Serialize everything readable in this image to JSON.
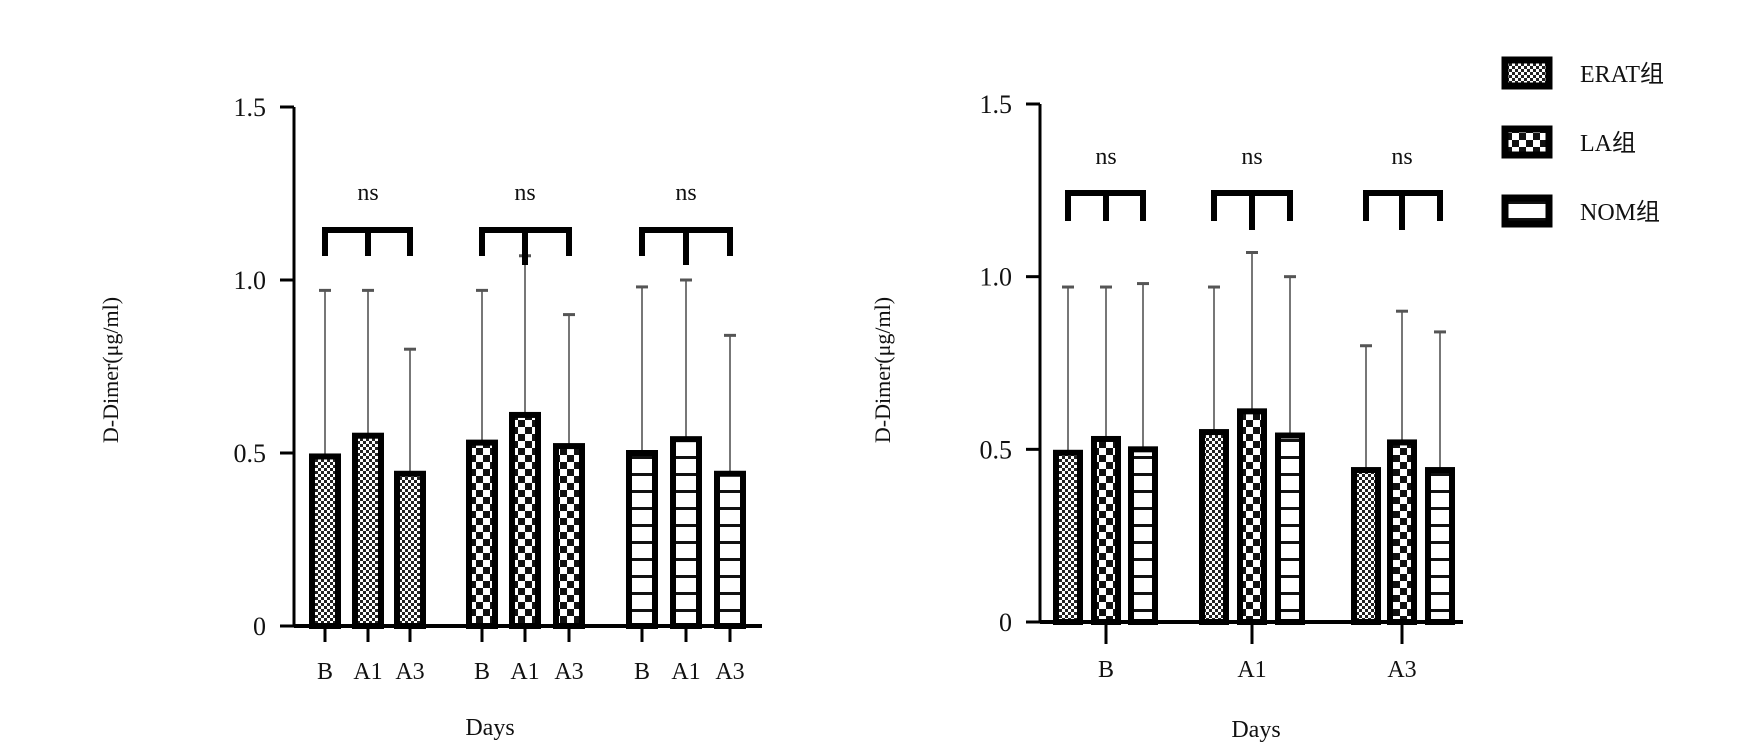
{
  "chart_data": [
    {
      "type": "bar",
      "grouping": "by-group",
      "xlabel": "Days",
      "ylabel": "D-Dimer(μg/ml)",
      "ylim": [
        0,
        1.5
      ],
      "yticks": [
        "0",
        "0.5",
        "1.0",
        "1.5"
      ],
      "ytick_values": [
        0,
        0.5,
        1.0,
        1.5
      ],
      "categories": [
        "B",
        "A1",
        "A3"
      ],
      "series": [
        {
          "name": "ERAT组",
          "pattern": "fine-checker",
          "values": [
            0.49,
            0.55,
            0.44
          ],
          "error_upper": [
            0.97,
            0.97,
            0.8
          ]
        },
        {
          "name": "LA组",
          "pattern": "coarse-checker",
          "values": [
            0.53,
            0.61,
            0.52
          ],
          "error_upper": [
            0.97,
            1.07,
            0.9
          ]
        },
        {
          "name": "NOM组",
          "pattern": "horizontal-stripes",
          "values": [
            0.5,
            0.54,
            0.44
          ],
          "error_upper": [
            0.98,
            1.0,
            0.84
          ]
        }
      ],
      "significance": [
        "ns",
        "ns",
        "ns"
      ],
      "grid": false
    },
    {
      "type": "bar",
      "grouping": "by-day",
      "xlabel": "Days",
      "ylabel": "D-Dimer(μg/ml)",
      "ylim": [
        0,
        1.5
      ],
      "yticks": [
        "0",
        "0.5",
        "1.0",
        "1.5"
      ],
      "ytick_values": [
        0,
        0.5,
        1.0,
        1.5
      ],
      "categories": [
        "B",
        "A1",
        "A3"
      ],
      "series": [
        {
          "name": "ERAT组",
          "pattern": "fine-checker",
          "values": [
            0.49,
            0.55,
            0.44
          ],
          "error_upper": [
            0.97,
            0.97,
            0.8
          ]
        },
        {
          "name": "LA组",
          "pattern": "coarse-checker",
          "values": [
            0.53,
            0.61,
            0.52
          ],
          "error_upper": [
            0.97,
            1.07,
            0.9
          ]
        },
        {
          "name": "NOM组",
          "pattern": "horizontal-stripes",
          "values": [
            0.5,
            0.54,
            0.44
          ],
          "error_upper": [
            0.98,
            1.0,
            0.84
          ]
        }
      ],
      "significance": [
        "ns",
        "ns",
        "ns"
      ],
      "legend": {
        "placement": "top-right",
        "entries": [
          "ERAT组",
          "LA组",
          "NOM组"
        ]
      },
      "grid": false
    }
  ]
}
